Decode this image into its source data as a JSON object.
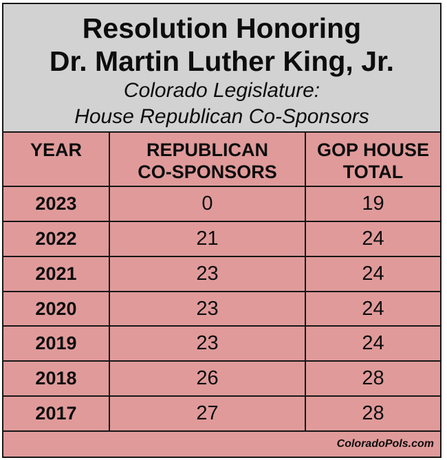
{
  "title": {
    "line1": "Resolution Honoring",
    "line2": "Dr. Martin Luther King, Jr.",
    "subtitle_line1": "Colorado Legislature:",
    "subtitle_line2": "House Republican Co-Sponsors"
  },
  "table": {
    "headers": [
      "YEAR",
      "REPUBLICAN\nCO-SPONSORS",
      "GOP HOUSE\nTOTAL"
    ],
    "rows": [
      {
        "year": "2023",
        "cosponsors": "0",
        "total": "19"
      },
      {
        "year": "2022",
        "cosponsors": "21",
        "total": "24"
      },
      {
        "year": "2021",
        "cosponsors": "23",
        "total": "24"
      },
      {
        "year": "2020",
        "cosponsors": "23",
        "total": "24"
      },
      {
        "year": "2019",
        "cosponsors": "23",
        "total": "24"
      },
      {
        "year": "2018",
        "cosponsors": "26",
        "total": "28"
      },
      {
        "year": "2017",
        "cosponsors": "27",
        "total": "28"
      }
    ]
  },
  "footer": {
    "source": "ColoradoPols.com"
  },
  "colors": {
    "table_bg": "#e09a9a",
    "title_bg": "#d2d2d2",
    "border": "#161616",
    "text": "#0d0d0d"
  },
  "chart_data": {
    "type": "table",
    "title": "Resolution Honoring Dr. Martin Luther King, Jr.",
    "subtitle": "Colorado Legislature: House Republican Co-Sponsors",
    "columns": [
      "YEAR",
      "REPUBLICAN CO-SPONSORS",
      "GOP HOUSE TOTAL"
    ],
    "rows": [
      [
        2023,
        0,
        19
      ],
      [
        2022,
        21,
        24
      ],
      [
        2021,
        23,
        24
      ],
      [
        2020,
        23,
        24
      ],
      [
        2019,
        23,
        24
      ],
      [
        2018,
        26,
        28
      ],
      [
        2017,
        27,
        28
      ]
    ],
    "source": "ColoradoPols.com"
  }
}
